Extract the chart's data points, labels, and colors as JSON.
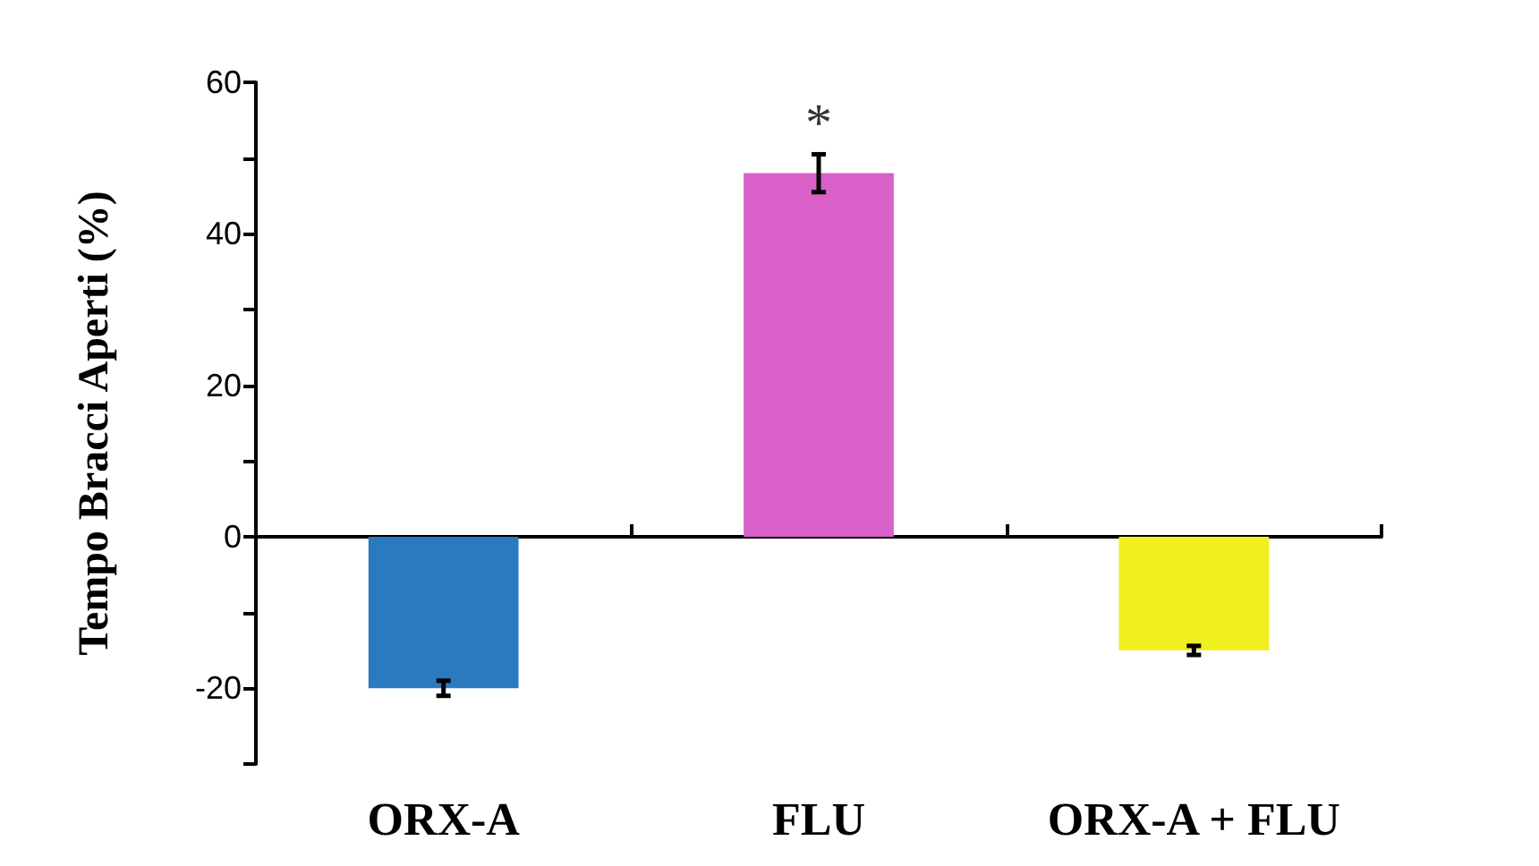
{
  "chart_data": {
    "type": "bar",
    "ylabel": "Tempo Bracci Aperti (%)",
    "categories": [
      "ORX-A",
      "FLU",
      "ORX-A + FLU"
    ],
    "values": [
      -20,
      48,
      -15
    ],
    "colors": [
      "#2a7ac0",
      "#d860c8",
      "#f0f020"
    ],
    "errors": [
      1,
      2.5,
      0.6
    ],
    "ylim": [
      -30,
      60
    ],
    "yticks": [
      {
        "value": -30,
        "label": null
      },
      -20,
      {
        "value": -10,
        "label": null
      },
      0,
      {
        "value": 10,
        "label": null
      },
      20,
      {
        "value": 30,
        "label": null
      },
      40,
      {
        "value": 50,
        "label": null
      },
      60
    ],
    "annotations": [
      "*"
    ]
  }
}
